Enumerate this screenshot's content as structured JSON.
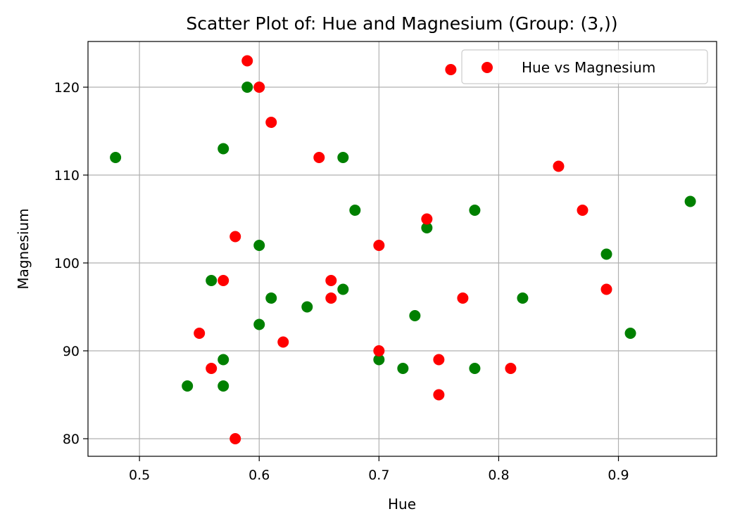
{
  "chart_data": {
    "type": "scatter",
    "title": "Scatter Plot of: Hue and Magnesium (Group: (3,))",
    "xlabel": "Hue",
    "ylabel": "Magnesium",
    "xlim": [
      0.457,
      0.982
    ],
    "ylim": [
      78,
      125.2
    ],
    "xticks": [
      "0.5",
      "0.6",
      "0.7",
      "0.8",
      "0.9"
    ],
    "yticks": [
      "80",
      "90",
      "100",
      "110",
      "120"
    ],
    "grid": true,
    "legend": {
      "position": "top-right",
      "entries": [
        "Hue vs Magnesium"
      ]
    },
    "series": [
      {
        "name": "Hue vs Magnesium",
        "color": "#ff0000",
        "points": [
          {
            "x": 0.59,
            "y": 123
          },
          {
            "x": 0.6,
            "y": 120
          },
          {
            "x": 0.76,
            "y": 122
          },
          {
            "x": 0.61,
            "y": 116
          },
          {
            "x": 0.65,
            "y": 112
          },
          {
            "x": 0.85,
            "y": 111
          },
          {
            "x": 0.87,
            "y": 106
          },
          {
            "x": 0.74,
            "y": 105
          },
          {
            "x": 0.58,
            "y": 103
          },
          {
            "x": 0.7,
            "y": 102
          },
          {
            "x": 0.57,
            "y": 98
          },
          {
            "x": 0.66,
            "y": 98
          },
          {
            "x": 0.89,
            "y": 97
          },
          {
            "x": 0.66,
            "y": 96
          },
          {
            "x": 0.77,
            "y": 96
          },
          {
            "x": 0.55,
            "y": 92
          },
          {
            "x": 0.62,
            "y": 91
          },
          {
            "x": 0.7,
            "y": 90
          },
          {
            "x": 0.75,
            "y": 89
          },
          {
            "x": 0.56,
            "y": 88
          },
          {
            "x": 0.81,
            "y": 88
          },
          {
            "x": 0.75,
            "y": 85
          },
          {
            "x": 0.58,
            "y": 80
          }
        ]
      },
      {
        "color": "#008000",
        "points": [
          {
            "x": 0.48,
            "y": 112
          },
          {
            "x": 0.59,
            "y": 120
          },
          {
            "x": 0.57,
            "y": 113
          },
          {
            "x": 0.67,
            "y": 112
          },
          {
            "x": 0.68,
            "y": 106
          },
          {
            "x": 0.78,
            "y": 106
          },
          {
            "x": 0.96,
            "y": 107
          },
          {
            "x": 0.74,
            "y": 104
          },
          {
            "x": 0.6,
            "y": 102
          },
          {
            "x": 0.89,
            "y": 101
          },
          {
            "x": 0.56,
            "y": 98
          },
          {
            "x": 0.67,
            "y": 97
          },
          {
            "x": 0.61,
            "y": 96
          },
          {
            "x": 0.82,
            "y": 96
          },
          {
            "x": 0.64,
            "y": 95
          },
          {
            "x": 0.73,
            "y": 94
          },
          {
            "x": 0.6,
            "y": 93
          },
          {
            "x": 0.91,
            "y": 92
          },
          {
            "x": 0.57,
            "y": 89
          },
          {
            "x": 0.7,
            "y": 89
          },
          {
            "x": 0.72,
            "y": 88
          },
          {
            "x": 0.78,
            "y": 88
          },
          {
            "x": 0.54,
            "y": 86
          },
          {
            "x": 0.57,
            "y": 86
          }
        ]
      }
    ]
  }
}
